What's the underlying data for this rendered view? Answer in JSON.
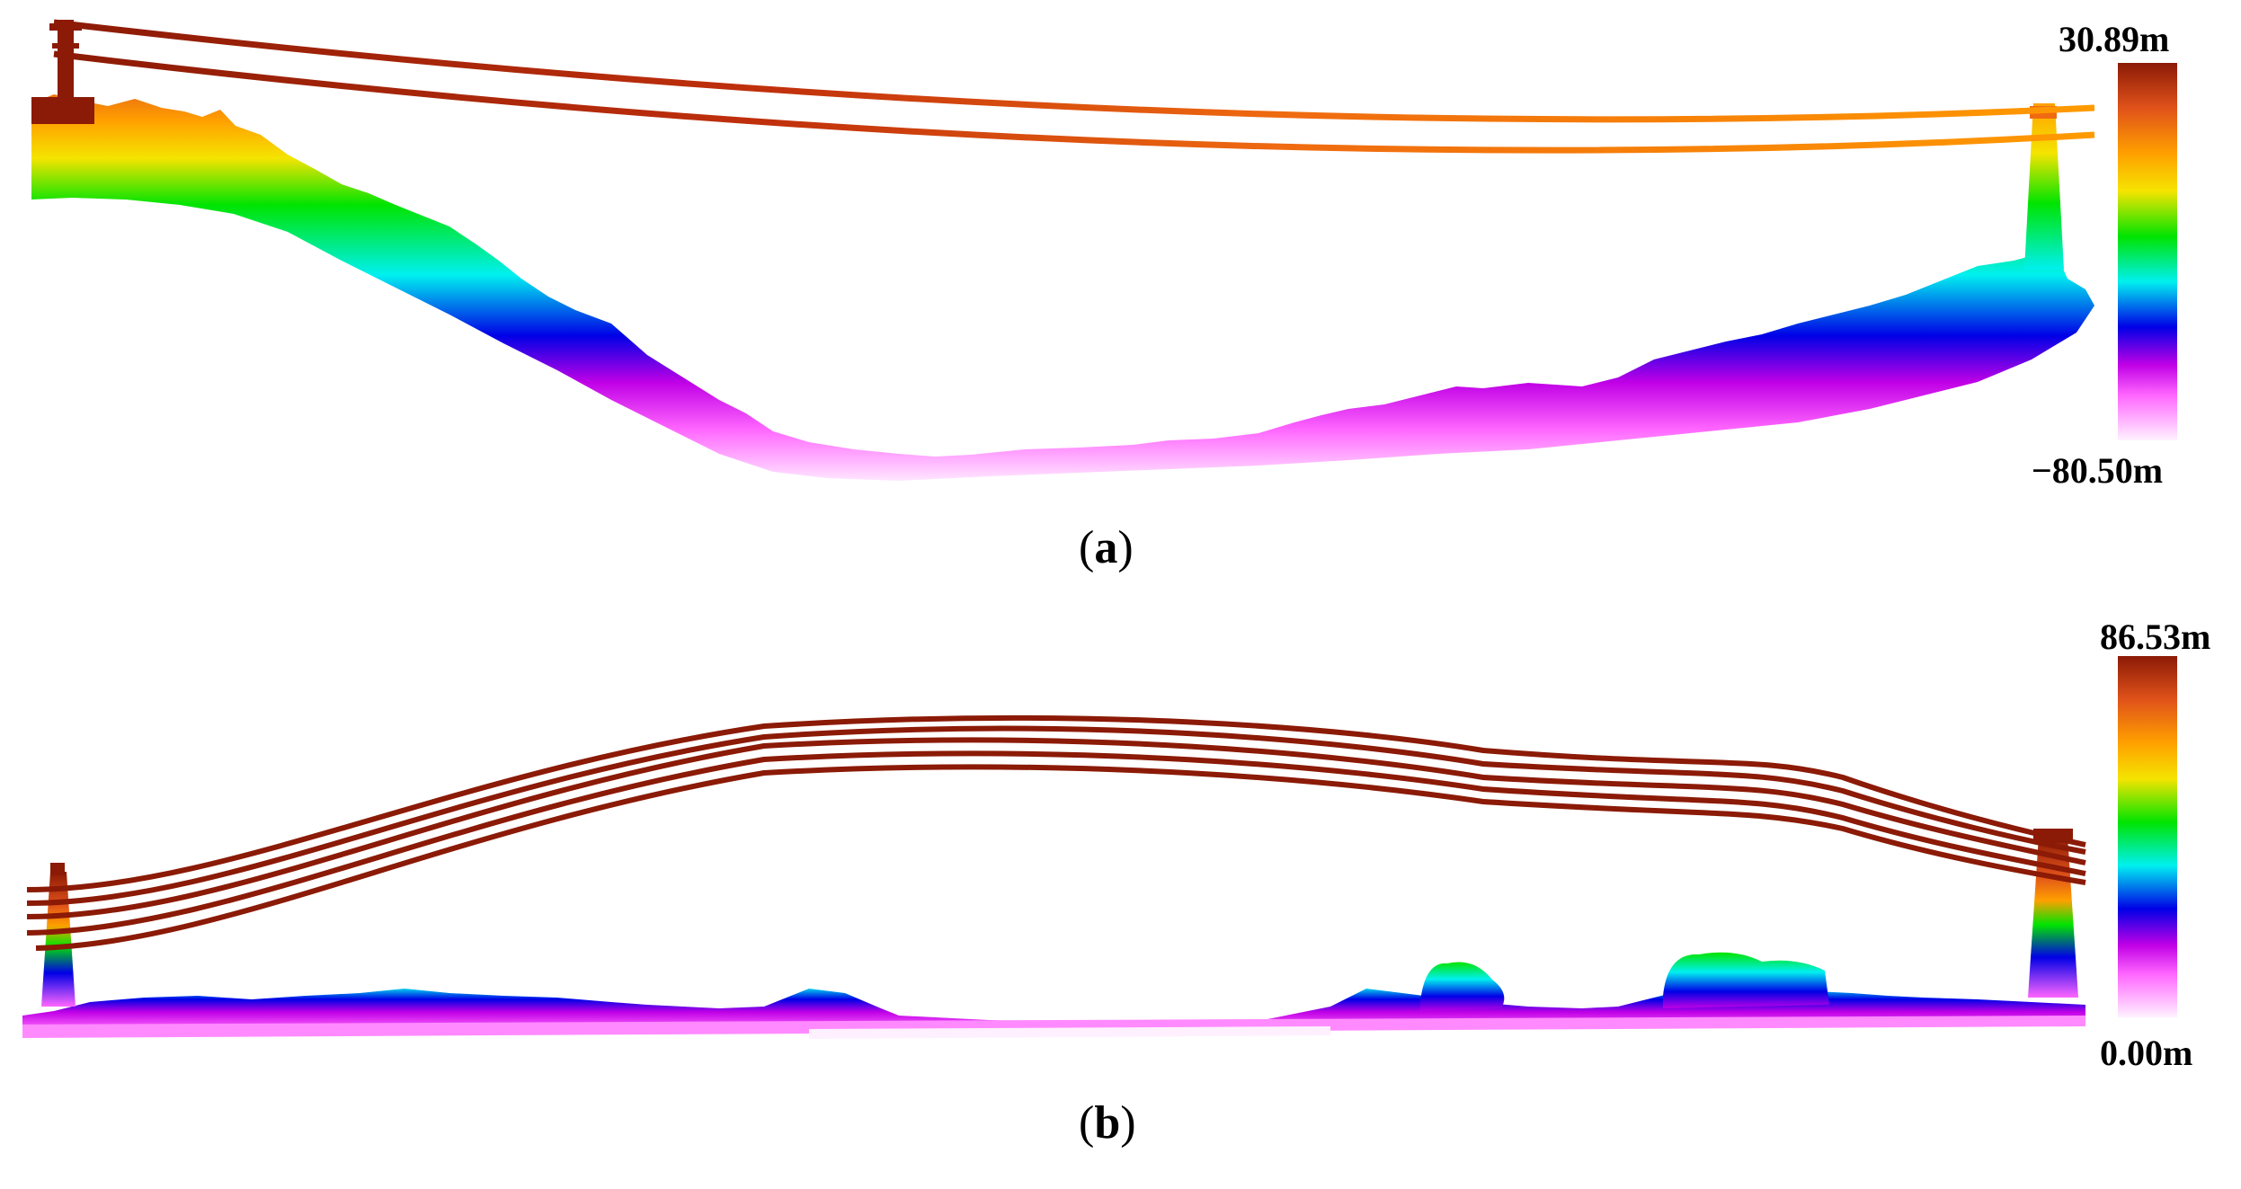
{
  "panels": [
    {
      "id": "a",
      "caption_letter": "a",
      "colorbar": {
        "max_label": "30.89m",
        "min_label": "−80.50m"
      },
      "colors": {
        "high": "#8b1a06",
        "low": "#fff2ff"
      }
    },
    {
      "id": "b",
      "caption_letter": "b",
      "colorbar": {
        "max_label": "86.53m",
        "min_label": "0.00m"
      },
      "colors": {
        "high": "#8b1a06",
        "low": "#fff2ff"
      }
    }
  ],
  "colorbar_stops": [
    "#8b1a06",
    "#e0521a",
    "#ffa000",
    "#f5e400",
    "#00e400",
    "#00f0f0",
    "#0000e6",
    "#c000e6",
    "#ff66ff",
    "#fff2ff"
  ]
}
